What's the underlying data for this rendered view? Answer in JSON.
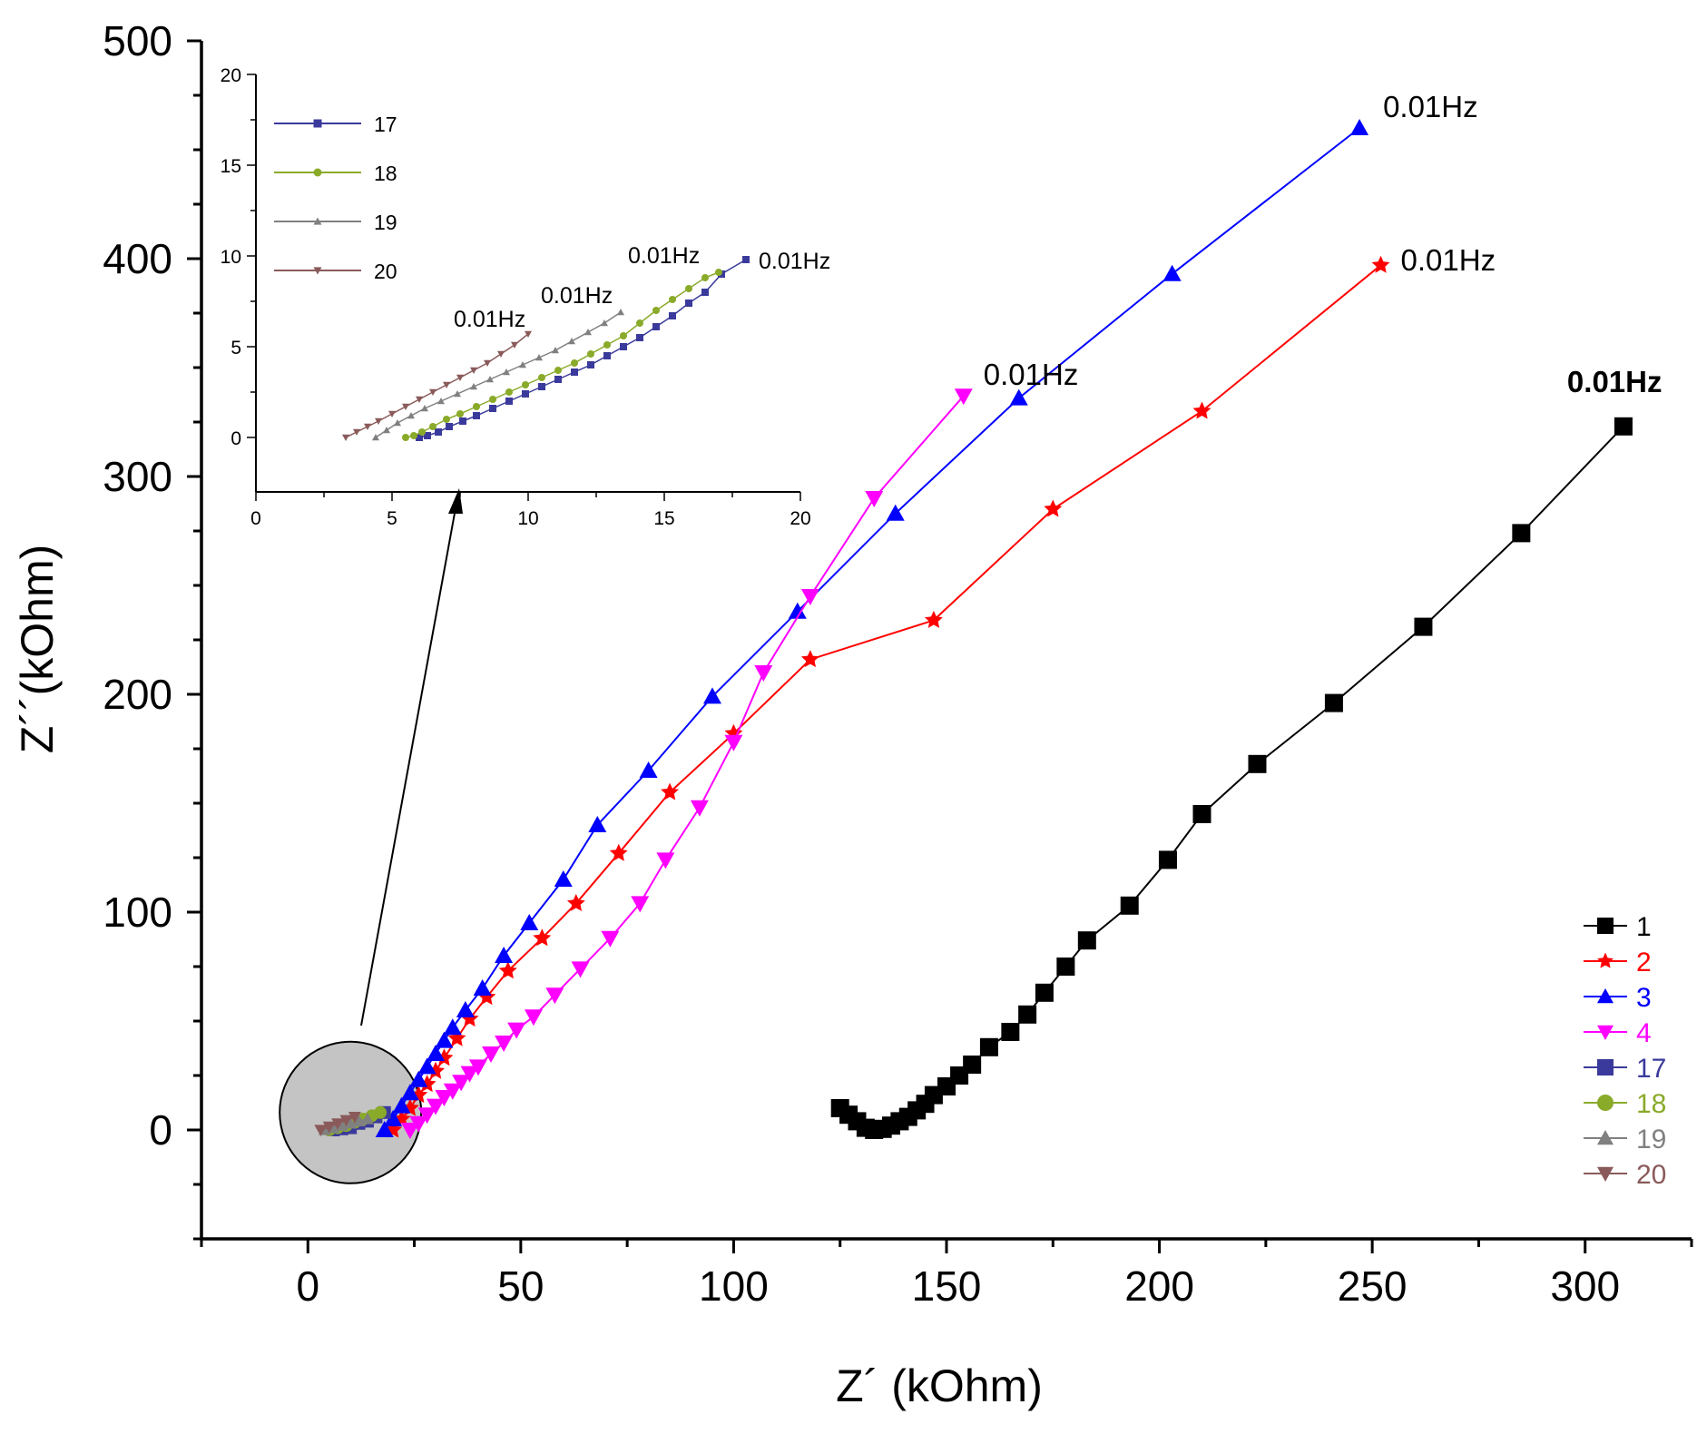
{
  "chart_data": {
    "type": "line",
    "xlabel": "Z´ (kOhm)",
    "ylabel": "Z´´(kOhm)",
    "xlim": [
      -25,
      325
    ],
    "ylim": [
      -50,
      500
    ],
    "xticks": [
      0,
      50,
      100,
      150,
      200,
      250,
      300
    ],
    "yticks": [
      0,
      100,
      200,
      300,
      400,
      500
    ],
    "legend_position": "bottom-right",
    "series": [
      {
        "name": "1",
        "color": "#000000",
        "marker": "square",
        "x": [
          125,
          127,
          129,
          131,
          133,
          135,
          137,
          139,
          141,
          143,
          145,
          147,
          150,
          153,
          156,
          160,
          165,
          169,
          173,
          178,
          183,
          193,
          202,
          210,
          223,
          241,
          262,
          285,
          309
        ],
        "y": [
          10,
          7,
          4,
          1,
          0,
          0.5,
          2,
          4,
          6,
          9,
          12,
          16,
          20,
          25,
          30,
          38,
          45,
          53,
          63,
          75,
          87,
          103,
          124,
          145,
          168,
          196,
          231,
          274,
          323
        ]
      },
      {
        "name": "2",
        "color": "#ff0000",
        "marker": "star",
        "x": [
          20,
          22,
          24,
          26,
          28,
          30,
          32,
          35,
          38,
          42,
          47,
          55,
          63,
          73,
          85,
          100,
          118,
          147,
          175,
          210,
          252
        ],
        "y": [
          0,
          5,
          10,
          16,
          21,
          27,
          33,
          42,
          51,
          61,
          73,
          88,
          104,
          127,
          155,
          182,
          216,
          234,
          285,
          330,
          397
        ]
      },
      {
        "name": "3",
        "color": "#0000ff",
        "marker": "triangle-up",
        "x": [
          18,
          20,
          22,
          24,
          26,
          28,
          30,
          32,
          34,
          37,
          41,
          46,
          52,
          60,
          68,
          80,
          95,
          115,
          138,
          167,
          203,
          247
        ],
        "y": [
          0,
          5,
          11,
          17,
          23,
          29,
          35,
          41,
          47,
          55,
          65,
          80,
          95,
          115,
          140,
          165,
          199,
          238,
          283,
          336,
          393,
          460
        ]
      },
      {
        "name": "4",
        "color": "#ff00ff",
        "marker": "triangle-down",
        "x": [
          24,
          26,
          28,
          30,
          32,
          34,
          36,
          38,
          40,
          43,
          46,
          49,
          53,
          58,
          64,
          71,
          78,
          84,
          92,
          100,
          107,
          118,
          133,
          154
        ],
        "y": [
          0,
          3,
          7,
          11,
          15,
          18,
          22,
          26,
          29,
          35,
          40,
          46,
          52,
          62,
          74,
          88,
          104,
          124,
          148,
          178,
          210,
          245,
          290,
          337
        ]
      },
      {
        "name": "17",
        "color": "#3a3a9c",
        "marker": "square",
        "x": [
          6,
          8,
          10,
          12,
          14,
          16,
          18
        ],
        "y": [
          0,
          0.5,
          1,
          3,
          4,
          6,
          8
        ]
      },
      {
        "name": "18",
        "color": "#8aaa2a",
        "marker": "circle",
        "x": [
          5,
          7,
          9,
          11,
          13,
          15,
          17
        ],
        "y": [
          0,
          1,
          2,
          3.5,
          5,
          6.5,
          8
        ]
      },
      {
        "name": "19",
        "color": "#808080",
        "marker": "triangle-up",
        "x": [
          4,
          6,
          8,
          10,
          12,
          14
        ],
        "y": [
          0,
          1,
          2,
          3,
          4,
          5
        ]
      },
      {
        "name": "20",
        "color": "#8a5a5a",
        "marker": "triangle-down",
        "x": [
          3,
          5,
          7,
          9,
          11
        ],
        "y": [
          0,
          1.5,
          3,
          4.5,
          6
        ]
      }
    ],
    "annotations": [
      {
        "text": "0.01Hz",
        "series": "3",
        "x": 247,
        "y": 460
      },
      {
        "text": "0.01Hz",
        "series": "2",
        "x": 252,
        "y": 397
      },
      {
        "text": "0.01Hz",
        "series": "1",
        "x": 309,
        "y": 323
      },
      {
        "text": "0.01Hz",
        "series": "4",
        "x": 154,
        "y": 337
      }
    ],
    "inset": {
      "xlim": [
        0,
        20
      ],
      "ylim": [
        -3,
        20
      ],
      "xticks": [
        0,
        5,
        10,
        15,
        20
      ],
      "yticks": [
        0,
        5,
        10,
        15,
        20
      ],
      "legend_position": "top-left",
      "series": [
        {
          "name": "17",
          "color": "#3a3a9c",
          "marker": "square",
          "x": [
            6.0,
            6.3,
            6.7,
            7.1,
            7.6,
            8.1,
            8.7,
            9.3,
            9.9,
            10.5,
            11.1,
            11.7,
            12.3,
            12.9,
            13.5,
            14.1,
            14.7,
            15.3,
            15.9,
            16.5,
            17.1,
            18.0
          ],
          "y": [
            0.0,
            0.1,
            0.3,
            0.6,
            0.9,
            1.2,
            1.6,
            2.0,
            2.4,
            2.8,
            3.2,
            3.6,
            4.0,
            4.5,
            5.0,
            5.5,
            6.1,
            6.7,
            7.4,
            8.0,
            9.0,
            9.8
          ]
        },
        {
          "name": "18",
          "color": "#8aaa2a",
          "marker": "circle",
          "x": [
            5.5,
            5.8,
            6.1,
            6.5,
            7.0,
            7.5,
            8.1,
            8.7,
            9.3,
            9.9,
            10.5,
            11.1,
            11.7,
            12.3,
            12.9,
            13.5,
            14.1,
            14.7,
            15.3,
            15.9,
            16.5,
            17.0
          ],
          "y": [
            0.0,
            0.1,
            0.3,
            0.6,
            1.0,
            1.3,
            1.7,
            2.1,
            2.5,
            2.9,
            3.3,
            3.7,
            4.1,
            4.6,
            5.1,
            5.6,
            6.3,
            7.0,
            7.6,
            8.2,
            8.8,
            9.1
          ]
        },
        {
          "name": "19",
          "color": "#808080",
          "marker": "triangle-up",
          "x": [
            4.4,
            4.8,
            5.2,
            5.7,
            6.2,
            6.8,
            7.4,
            8.0,
            8.6,
            9.2,
            9.8,
            10.4,
            11.0,
            11.6,
            12.2,
            12.8,
            13.4
          ],
          "y": [
            0.0,
            0.4,
            0.8,
            1.2,
            1.6,
            2.0,
            2.4,
            2.8,
            3.2,
            3.6,
            4.0,
            4.4,
            4.8,
            5.3,
            5.8,
            6.3,
            6.9
          ]
        },
        {
          "name": "20",
          "color": "#8a5a5a",
          "marker": "triangle-down",
          "x": [
            3.3,
            3.7,
            4.1,
            4.5,
            5.0,
            5.5,
            6.0,
            6.5,
            7.0,
            7.5,
            8.0,
            8.5,
            9.0,
            9.5,
            10.0
          ],
          "y": [
            0.0,
            0.3,
            0.6,
            0.9,
            1.3,
            1.7,
            2.1,
            2.5,
            2.9,
            3.3,
            3.7,
            4.1,
            4.6,
            5.1,
            5.7
          ]
        }
      ],
      "annotations": [
        {
          "text": "0.01Hz",
          "series": "17",
          "x": 18.0,
          "y": 9.8
        },
        {
          "text": "0.01Hz",
          "series": "18",
          "x": 17.0,
          "y": 9.1
        },
        {
          "text": "0.01Hz",
          "series": "19",
          "x": 13.4,
          "y": 6.9
        },
        {
          "text": "0.01Hz",
          "series": "20",
          "x": 10.0,
          "y": 5.7
        }
      ]
    }
  }
}
